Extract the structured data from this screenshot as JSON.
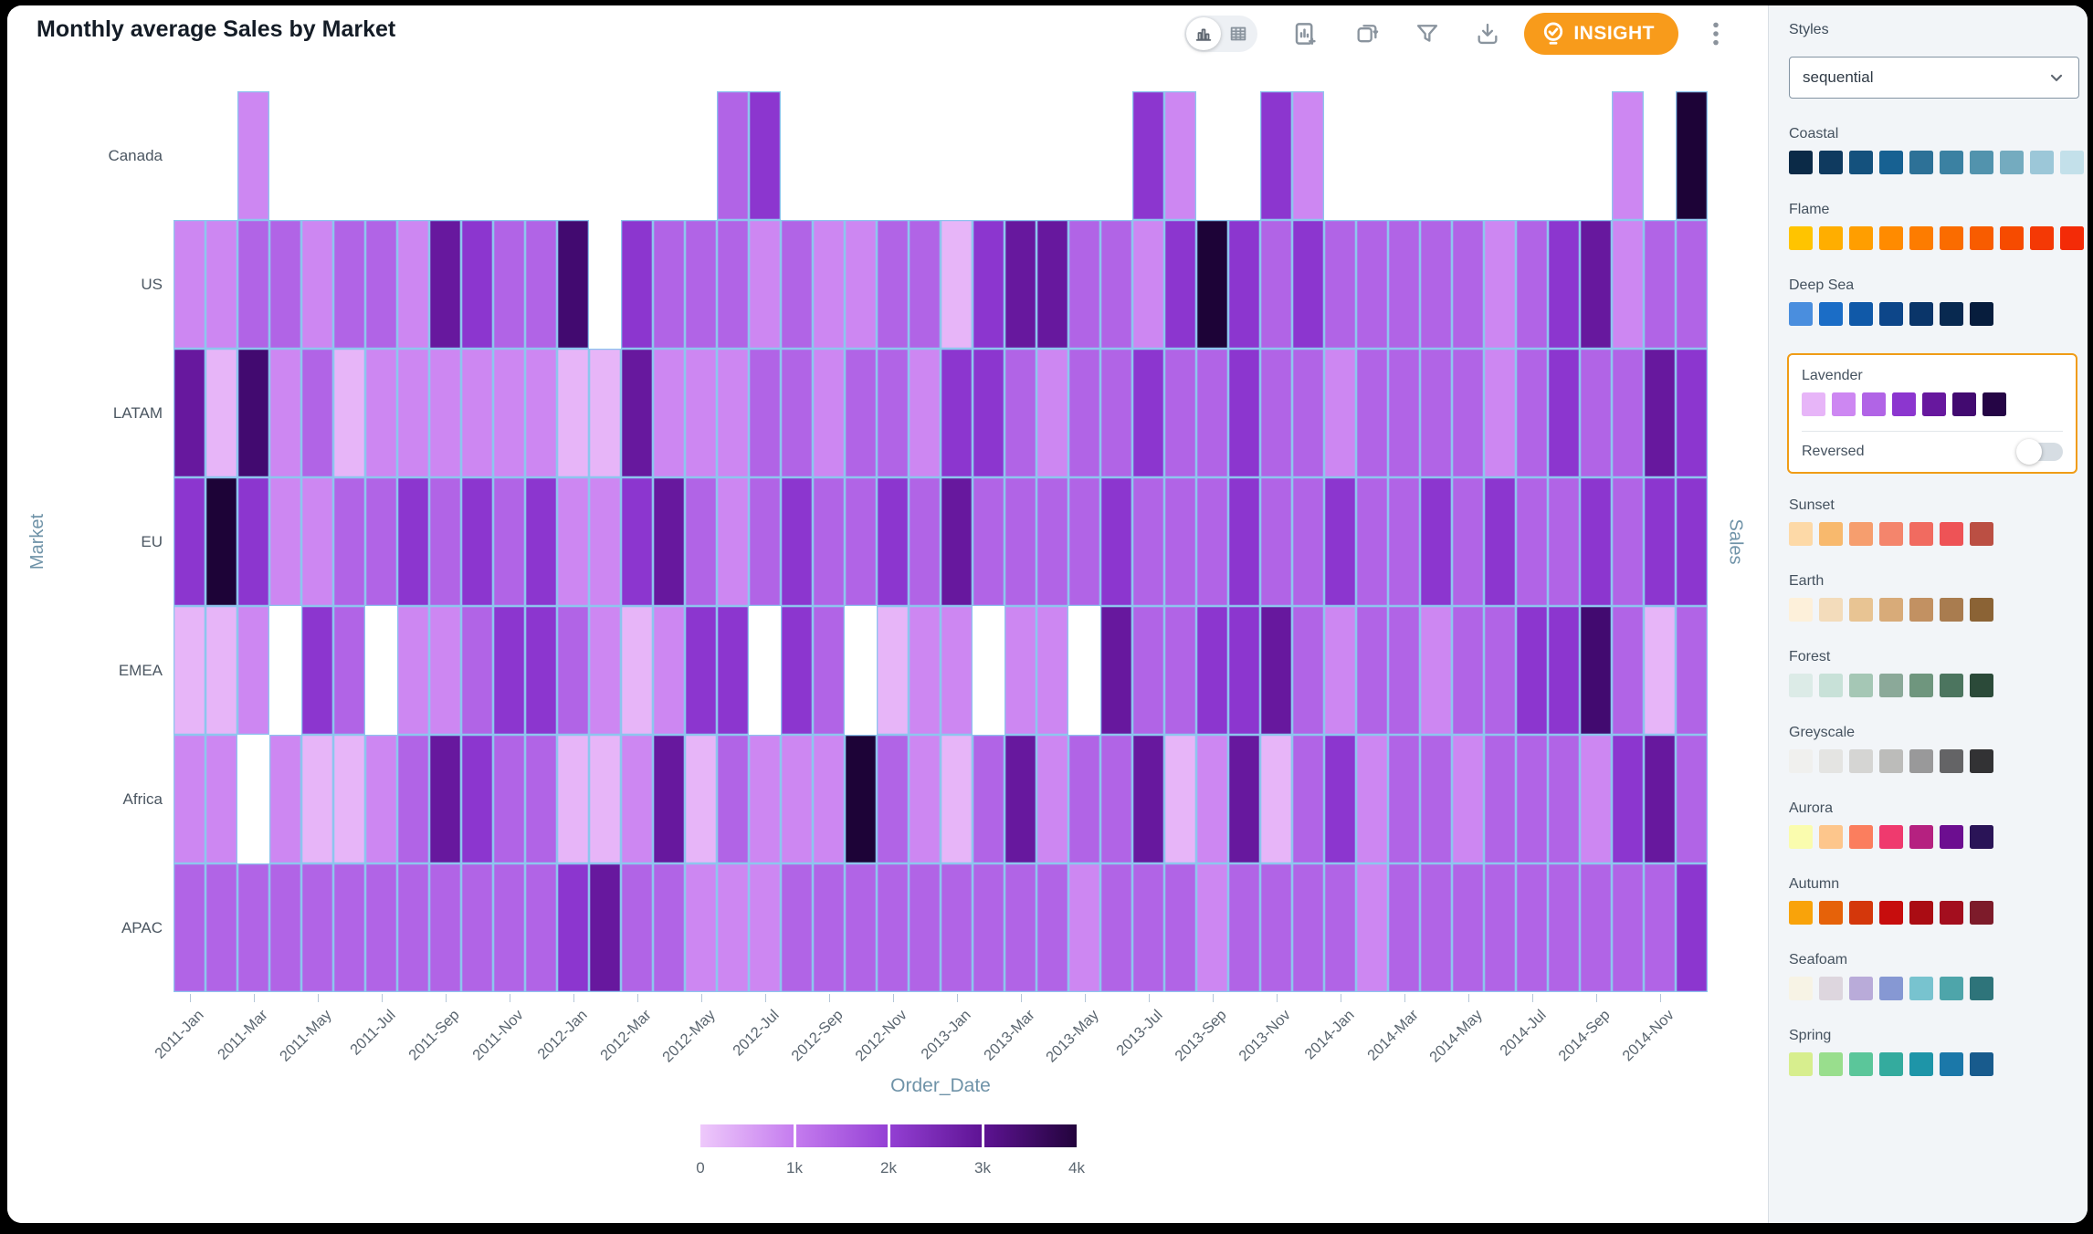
{
  "window": {
    "title": "Monthly average Sales by Market"
  },
  "toolbar": {
    "view_toggle": [
      {
        "name": "chart-view",
        "icon": "bar-chart-icon",
        "selected": true
      },
      {
        "name": "table-view",
        "icon": "table-icon",
        "selected": false
      }
    ],
    "buttons": [
      "add-chart",
      "duplicate",
      "filter",
      "download"
    ],
    "insight_label": "INSIGHT",
    "insight_color": "#f89b1b"
  },
  "chart_data": {
    "type": "heatmap",
    "title": "Monthly average Sales by Market",
    "xlabel": "Order_Date",
    "ylabel_left": "Market",
    "ylabel_right": "Sales",
    "rows": [
      "Canada",
      "US",
      "LATAM",
      "EU",
      "EMEA",
      "Africa",
      "APAC"
    ],
    "columns_months": "2011-Jan through 2014-Dec (48 monthly columns)",
    "x_tick_labels": [
      "2011-Jan",
      "2011-Mar",
      "2011-May",
      "2011-Jul",
      "2011-Sep",
      "2011-Nov",
      "2012-Jan",
      "2012-Mar",
      "2012-May",
      "2012-Jul",
      "2012-Sep",
      "2012-Nov",
      "2013-Jan",
      "2013-Mar",
      "2013-May",
      "2013-Jul",
      "2013-Sep",
      "2013-Nov",
      "2014-Jan",
      "2014-Mar",
      "2014-May",
      "2014-Jul",
      "2014-Sep",
      "2014-Nov"
    ],
    "palette": [
      "#e7b5f8",
      "#cd87f2",
      "#b164e6",
      "#8c36cf",
      "#67189e",
      "#420a70",
      "#1d0337"
    ],
    "grid_color": "#8ec5ee",
    "level_values_approx": [
      250,
      750,
      1300,
      1850,
      2500,
      3200,
      4000
    ],
    "levels": [
      [
        null,
        null,
        1,
        null,
        null,
        null,
        null,
        null,
        null,
        null,
        null,
        null,
        null,
        null,
        null,
        null,
        null,
        2,
        3,
        null,
        null,
        null,
        null,
        null,
        null,
        null,
        null,
        null,
        null,
        null,
        3,
        1,
        null,
        null,
        3,
        1,
        null,
        null,
        null,
        null,
        null,
        null,
        null,
        null,
        null,
        1,
        null,
        6
      ],
      [
        1,
        1,
        2,
        2,
        1,
        2,
        2,
        1,
        4,
        3,
        2,
        2,
        5,
        null,
        3,
        2,
        2,
        2,
        1,
        2,
        1,
        1,
        2,
        2,
        0,
        3,
        4,
        4,
        2,
        2,
        1,
        3,
        6,
        3,
        2,
        3,
        2,
        2,
        2,
        2,
        2,
        1,
        2,
        3,
        4,
        1,
        2,
        2
      ],
      [
        4,
        0,
        5,
        1,
        2,
        0,
        1,
        1,
        1,
        1,
        1,
        1,
        0,
        0,
        4,
        1,
        1,
        1,
        2,
        2,
        1,
        2,
        2,
        1,
        3,
        3,
        2,
        1,
        2,
        2,
        3,
        2,
        2,
        3,
        2,
        2,
        1,
        2,
        2,
        2,
        2,
        1,
        2,
        3,
        2,
        2,
        4,
        3
      ],
      [
        3,
        6,
        3,
        1,
        1,
        2,
        2,
        3,
        2,
        3,
        2,
        3,
        1,
        1,
        3,
        4,
        2,
        1,
        2,
        3,
        2,
        2,
        3,
        2,
        4,
        2,
        2,
        2,
        2,
        3,
        2,
        2,
        2,
        3,
        2,
        2,
        3,
        2,
        2,
        3,
        2,
        3,
        2,
        2,
        3,
        2,
        3,
        3
      ],
      [
        0,
        0,
        1,
        null,
        3,
        2,
        null,
        1,
        1,
        2,
        3,
        3,
        2,
        1,
        0,
        1,
        3,
        3,
        null,
        3,
        2,
        null,
        0,
        1,
        1,
        null,
        1,
        1,
        null,
        4,
        2,
        2,
        3,
        3,
        4,
        2,
        1,
        2,
        2,
        1,
        2,
        2,
        3,
        3,
        5,
        2,
        0,
        2
      ],
      [
        1,
        1,
        null,
        1,
        0,
        0,
        1,
        2,
        4,
        3,
        2,
        2,
        0,
        0,
        1,
        4,
        0,
        2,
        1,
        1,
        1,
        6,
        2,
        1,
        0,
        2,
        4,
        1,
        2,
        2,
        4,
        0,
        1,
        4,
        0,
        2,
        3,
        1,
        2,
        2,
        1,
        2,
        2,
        2,
        1,
        3,
        4,
        2
      ],
      [
        2,
        2,
        2,
        2,
        2,
        2,
        2,
        2,
        2,
        2,
        2,
        2,
        3,
        4,
        2,
        2,
        1,
        1,
        1,
        2,
        2,
        2,
        2,
        2,
        2,
        2,
        2,
        2,
        1,
        2,
        2,
        2,
        1,
        2,
        2,
        2,
        2,
        1,
        2,
        2,
        2,
        2,
        2,
        2,
        2,
        2,
        2,
        3
      ]
    ],
    "legend": {
      "min": 0,
      "max": 4000,
      "tick_labels": [
        "0",
        "1k",
        "2k",
        "3k",
        "4k"
      ],
      "gradient_stops": [
        "#eec9fb",
        "#c57cef",
        "#9440d4",
        "#5e1394",
        "#23043c"
      ]
    }
  },
  "styles_panel": {
    "label": "Styles",
    "dropdown_value": "sequential",
    "selected_palette": "Lavender",
    "reversed_label": "Reversed",
    "reversed_on": false,
    "accent_color": "#f09c16",
    "palettes": [
      {
        "name": "Coastal",
        "colors": [
          "#0b2a47",
          "#0f3a5f",
          "#14517d",
          "#176192",
          "#2d7197",
          "#3b81a2",
          "#5293ad",
          "#74abbf",
          "#9cc7d8",
          "#c3e0ea"
        ]
      },
      {
        "name": "Flame",
        "colors": [
          "#ffc400",
          "#ffae00",
          "#ff9e00",
          "#ff8b00",
          "#fd7c00",
          "#fa6c00",
          "#f85c00",
          "#f64b00",
          "#f43905",
          "#f32b07"
        ]
      },
      {
        "name": "Deep Sea",
        "colors": [
          "#4a8ede",
          "#1b6dc6",
          "#1059a8",
          "#0d4689",
          "#0a3569",
          "#082950",
          "#071d3d"
        ]
      },
      {
        "name": "Lavender",
        "colors": [
          "#e7b5f8",
          "#cd87f2",
          "#b164e6",
          "#8c36cf",
          "#67189e",
          "#420a70",
          "#250545"
        ]
      },
      {
        "name": "Sunset",
        "colors": [
          "#fdd9a7",
          "#f8b96d",
          "#f69e6e",
          "#f4856c",
          "#f16b60",
          "#ee5356",
          "#bb4f43"
        ]
      },
      {
        "name": "Earth",
        "colors": [
          "#fdf0da",
          "#f3dcbb",
          "#e8c493",
          "#d8ab79",
          "#c29162",
          "#a97c4f",
          "#8b6335"
        ]
      },
      {
        "name": "Forest",
        "colors": [
          "#dcebe7",
          "#c8e1d8",
          "#a5c7b5",
          "#8ba999",
          "#6f967e",
          "#4c755f",
          "#2b4a39"
        ]
      },
      {
        "name": "Greyscale",
        "colors": [
          "#f0f0ee",
          "#e4e4e2",
          "#d5d5d3",
          "#bcbcba",
          "#99999a",
          "#646466",
          "#323234"
        ]
      },
      {
        "name": "Aurora",
        "colors": [
          "#fafcae",
          "#fdc68c",
          "#fb7e5e",
          "#ef3a6e",
          "#b52180",
          "#6c0e90",
          "#2a1457"
        ]
      },
      {
        "name": "Autumn",
        "colors": [
          "#f9a30a",
          "#e66209",
          "#d4370b",
          "#c70d0d",
          "#aa0c13",
          "#a30e1e",
          "#7d1b2a"
        ]
      },
      {
        "name": "Seafoam",
        "colors": [
          "#f7f3e5",
          "#ddd6de",
          "#b9abd9",
          "#8698d3",
          "#78c3cf",
          "#4ea5aa",
          "#2e747a"
        ]
      },
      {
        "name": "Spring",
        "colors": [
          "#d7ee8e",
          "#99de8d",
          "#5bc69a",
          "#34ab9e",
          "#1e95a8",
          "#1b78a9",
          "#185b8d"
        ]
      }
    ]
  }
}
